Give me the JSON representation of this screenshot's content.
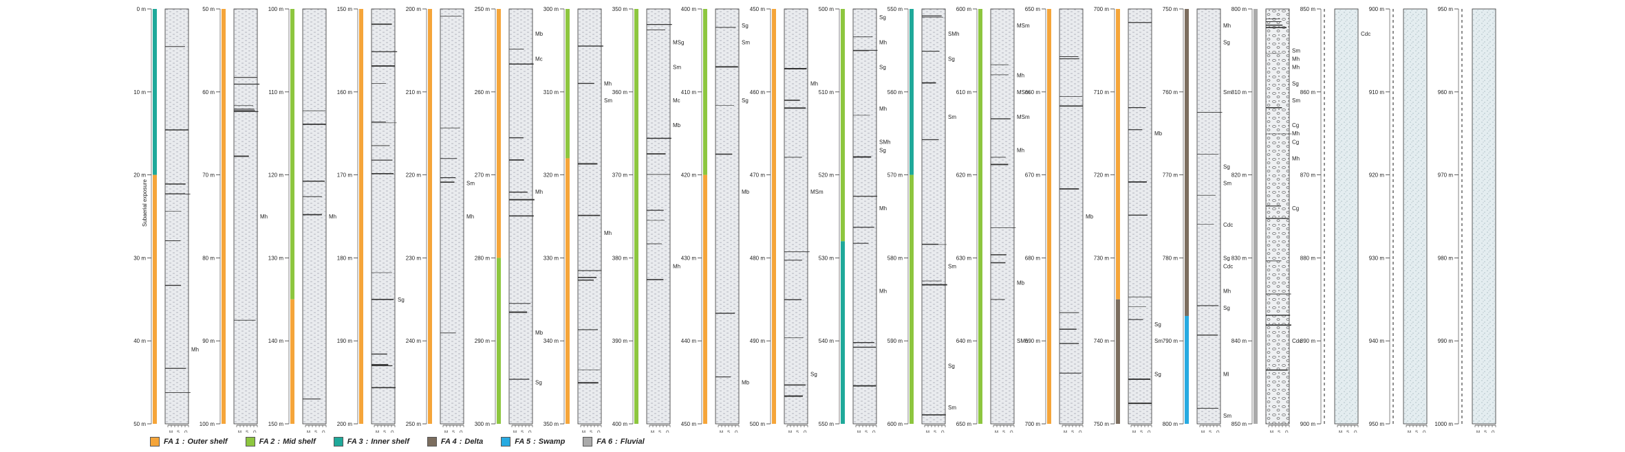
{
  "facies_associations": [
    {
      "code": "FA 1",
      "label": "Outer shelf",
      "color": "#f5a53a"
    },
    {
      "code": "FA 2",
      "label": "Mid shelf",
      "color": "#8dc63f"
    },
    {
      "code": "FA 3",
      "label": "Inner shelf",
      "color": "#1fa99a"
    },
    {
      "code": "FA 4",
      "label": "Delta",
      "color": "#7b6d5e"
    },
    {
      "code": "FA 5",
      "label": "Swamp",
      "color": "#27aae1"
    },
    {
      "code": "FA 6",
      "label": "Fluvial",
      "color": "#aaaaaa"
    }
  ],
  "legend_separator": ":",
  "grain_scale_labels": [
    "M",
    "S",
    "G"
  ],
  "exposure_label": "Subaerial exposure",
  "columns": [
    {
      "ticks": [
        "0 m",
        "10 m",
        "20 m",
        "30 m",
        "40 m",
        "50 m"
      ],
      "fa": [
        {
          "from": 0,
          "to": 20,
          "code": "FA 3"
        },
        {
          "from": 20,
          "to": 50,
          "code": "FA 1"
        }
      ],
      "labels": [
        {
          "text": "Mh",
          "at": 41
        }
      ],
      "lithology": "mudstone"
    },
    {
      "ticks": [
        "50 m",
        "60 m",
        "70 m",
        "80 m",
        "90 m",
        "100 m"
      ],
      "fa": [
        {
          "from": 0,
          "to": 50,
          "code": "FA 1"
        }
      ],
      "labels": [
        {
          "text": "Mh",
          "at": 25
        }
      ],
      "lithology": "mudstone"
    },
    {
      "ticks": [
        "100 m",
        "110 m",
        "120 m",
        "130 m",
        "140 m",
        "150 m"
      ],
      "fa": [
        {
          "from": 0,
          "to": 35,
          "code": "FA 2"
        },
        {
          "from": 35,
          "to": 50,
          "code": "FA 1"
        }
      ],
      "labels": [
        {
          "text": "Mh",
          "at": 25
        }
      ],
      "lithology": "mudstone"
    },
    {
      "ticks": [
        "150 m",
        "160 m",
        "170 m",
        "180 m",
        "190 m",
        "200 m"
      ],
      "fa": [
        {
          "from": 0,
          "to": 50,
          "code": "FA 1"
        }
      ],
      "labels": [
        {
          "text": "Sg",
          "at": 35
        }
      ],
      "lithology": "mudstone"
    },
    {
      "ticks": [
        "200 m",
        "210 m",
        "220 m",
        "230 m",
        "240 m",
        "250 m"
      ],
      "fa": [
        {
          "from": 0,
          "to": 50,
          "code": "FA 1"
        }
      ],
      "labels": [
        {
          "text": "Mh",
          "at": 25
        },
        {
          "text": "Sm",
          "at": 21
        }
      ],
      "lithology": "mudstone"
    },
    {
      "ticks": [
        "250 m",
        "260 m",
        "270 m",
        "280 m",
        "290 m",
        "300 m"
      ],
      "fa": [
        {
          "from": 0,
          "to": 30,
          "code": "FA 1"
        },
        {
          "from": 30,
          "to": 50,
          "code": "FA 2"
        }
      ],
      "labels": [
        {
          "text": "Mb",
          "at": 3
        },
        {
          "text": "Mc",
          "at": 6
        },
        {
          "text": "Mh",
          "at": 22
        },
        {
          "text": "Mb",
          "at": 39
        },
        {
          "text": "Sg",
          "at": 45
        }
      ],
      "lithology": "mudstone"
    },
    {
      "ticks": [
        "300 m",
        "310 m",
        "320 m",
        "330 m",
        "340 m",
        "350 m"
      ],
      "fa": [
        {
          "from": 0,
          "to": 18,
          "code": "FA 2"
        },
        {
          "from": 18,
          "to": 50,
          "code": "FA 1"
        }
      ],
      "labels": [
        {
          "text": "Mh",
          "at": 9
        },
        {
          "text": "Sm",
          "at": 11
        },
        {
          "text": "Mh",
          "at": 27
        }
      ],
      "lithology": "mudstone"
    },
    {
      "ticks": [
        "350 m",
        "360 m",
        "370 m",
        "380 m",
        "390 m",
        "400 m"
      ],
      "fa": [
        {
          "from": 0,
          "to": 50,
          "code": "FA 2"
        }
      ],
      "labels": [
        {
          "text": "MSg",
          "at": 4
        },
        {
          "text": "Sm",
          "at": 7
        },
        {
          "text": "Mc",
          "at": 11
        },
        {
          "text": "Mb",
          "at": 14
        },
        {
          "text": "Mh",
          "at": 31
        }
      ],
      "lithology": "mudstone"
    },
    {
      "ticks": [
        "400 m",
        "410 m",
        "420 m",
        "430 m",
        "440 m",
        "450 m"
      ],
      "fa": [
        {
          "from": 0,
          "to": 20,
          "code": "FA 2"
        },
        {
          "from": 20,
          "to": 50,
          "code": "FA 1"
        }
      ],
      "labels": [
        {
          "text": "Sg",
          "at": 2
        },
        {
          "text": "Sm",
          "at": 4
        },
        {
          "text": "Sg",
          "at": 11
        },
        {
          "text": "Mb",
          "at": 22
        },
        {
          "text": "Mb",
          "at": 45
        }
      ],
      "lithology": "mudstone"
    },
    {
      "ticks": [
        "450 m",
        "460 m",
        "470 m",
        "480 m",
        "490 m",
        "500 m"
      ],
      "fa": [
        {
          "from": 0,
          "to": 50,
          "code": "FA 1"
        }
      ],
      "labels": [
        {
          "text": "Mh",
          "at": 9
        },
        {
          "text": "MSm",
          "at": 22
        },
        {
          "text": "Sg",
          "at": 44
        }
      ],
      "lithology": "mudstone"
    },
    {
      "ticks": [
        "500 m",
        "510 m",
        "520 m",
        "530 m",
        "540 m",
        "550 m"
      ],
      "fa": [
        {
          "from": 0,
          "to": 28,
          "code": "FA 2"
        },
        {
          "from": 28,
          "to": 50,
          "code": "FA 3"
        }
      ],
      "labels": [
        {
          "text": "Sg",
          "at": 1
        },
        {
          "text": "Mh",
          "at": 4
        },
        {
          "text": "Sg",
          "at": 7
        },
        {
          "text": "Mh",
          "at": 12
        },
        {
          "text": "SMh",
          "at": 16
        },
        {
          "text": "Sg",
          "at": 17
        },
        {
          "text": "Mh",
          "at": 24
        },
        {
          "text": "Mh",
          "at": 34
        }
      ],
      "lithology": "mudstone"
    },
    {
      "ticks": [
        "550 m",
        "560 m",
        "570 m",
        "580 m",
        "590 m",
        "600 m"
      ],
      "fa": [
        {
          "from": 0,
          "to": 20,
          "code": "FA 3"
        },
        {
          "from": 20,
          "to": 50,
          "code": "FA 2"
        }
      ],
      "labels": [
        {
          "text": "SMh",
          "at": 3
        },
        {
          "text": "Sg",
          "at": 6
        },
        {
          "text": "Sm",
          "at": 13
        },
        {
          "text": "Sm",
          "at": 31
        },
        {
          "text": "Sg",
          "at": 43
        },
        {
          "text": "Sm",
          "at": 48
        }
      ],
      "lithology": "mudstone"
    },
    {
      "ticks": [
        "600 m",
        "610 m",
        "620 m",
        "630 m",
        "640 m",
        "650 m"
      ],
      "fa": [
        {
          "from": 0,
          "to": 50,
          "code": "FA 2"
        }
      ],
      "labels": [
        {
          "text": "SMh",
          "at": 40
        },
        {
          "text": "MSm",
          "at": 2
        },
        {
          "text": "Mh",
          "at": 8
        },
        {
          "text": "MSm",
          "at": 10
        },
        {
          "text": "MSm",
          "at": 13
        },
        {
          "text": "Mh",
          "at": 17
        },
        {
          "text": "Mb",
          "at": 33
        }
      ],
      "lithology": "mudstone"
    },
    {
      "ticks": [
        "650 m",
        "660 m",
        "670 m",
        "680 m",
        "690 m",
        "700 m"
      ],
      "fa": [
        {
          "from": 0,
          "to": 50,
          "code": "FA 1"
        }
      ],
      "labels": [
        {
          "text": "Mb",
          "at": 25
        }
      ],
      "lithology": "mudstone"
    },
    {
      "ticks": [
        "700 m",
        "710 m",
        "720 m",
        "730 m",
        "740 m",
        "750 m"
      ],
      "fa": [
        {
          "from": 0,
          "to": 35,
          "code": "FA 1"
        },
        {
          "from": 35,
          "to": 50,
          "code": "FA 4"
        }
      ],
      "labels": [
        {
          "text": "Mb",
          "at": 15
        },
        {
          "text": "Sg",
          "at": 38
        },
        {
          "text": "Sm",
          "at": 40
        },
        {
          "text": "Sg",
          "at": 44
        }
      ],
      "lithology": "mudstone"
    },
    {
      "ticks": [
        "750 m",
        "760 m",
        "770 m",
        "780 m",
        "790 m",
        "800 m"
      ],
      "fa": [
        {
          "from": 0,
          "to": 37,
          "code": "FA 4"
        },
        {
          "from": 37,
          "to": 50,
          "code": "FA 5"
        }
      ],
      "labels": [
        {
          "text": "Mh",
          "at": 2
        },
        {
          "text": "Sg",
          "at": 4
        },
        {
          "text": "Sm",
          "at": 10
        },
        {
          "text": "Sg",
          "at": 19
        },
        {
          "text": "Sm",
          "at": 21
        },
        {
          "text": "Cdc",
          "at": 26
        },
        {
          "text": "Sg",
          "at": 30
        },
        {
          "text": "Cdc",
          "at": 31
        },
        {
          "text": "Mh",
          "at": 34
        },
        {
          "text": "Sg",
          "at": 36
        },
        {
          "text": "Ml",
          "at": 44
        },
        {
          "text": "Sm",
          "at": 49
        }
      ],
      "lithology": "mudstone"
    },
    {
      "ticks": [
        "800 m",
        "810 m",
        "820 m",
        "830 m",
        "840 m",
        "850 m"
      ],
      "fa": [
        {
          "from": 0,
          "to": 50,
          "code": "FA 6"
        }
      ],
      "labels": [
        {
          "text": "Mh",
          "at": 6
        },
        {
          "text": "Sm",
          "at": 5
        },
        {
          "text": "Mh",
          "at": 7
        },
        {
          "text": "Sg",
          "at": 9
        },
        {
          "text": "Sm",
          "at": 11
        },
        {
          "text": "Mh",
          "at": 15
        },
        {
          "text": "Cg",
          "at": 14
        },
        {
          "text": "Cg",
          "at": 16
        },
        {
          "text": "Mh",
          "at": 18
        },
        {
          "text": "Cg",
          "at": 24
        },
        {
          "text": "Cdc",
          "at": 40
        }
      ],
      "lithology": "conglomerate"
    },
    {
      "ticks": [
        "850 m",
        "860 m",
        "870 m",
        "880 m",
        "890 m",
        "900 m"
      ],
      "fa": [],
      "labels": [
        {
          "text": "Cdc",
          "at": 3
        }
      ],
      "lithology": "sandstone"
    },
    {
      "ticks": [
        "900 m",
        "910 m",
        "920 m",
        "930 m",
        "940 m",
        "950 m"
      ],
      "fa": [],
      "labels": [],
      "lithology": "sandstone"
    },
    {
      "ticks": [
        "950 m",
        "960 m",
        "970 m",
        "980 m",
        "990 m",
        "1000 m"
      ],
      "fa": [],
      "labels": [],
      "lithology": "sandstone"
    }
  ]
}
